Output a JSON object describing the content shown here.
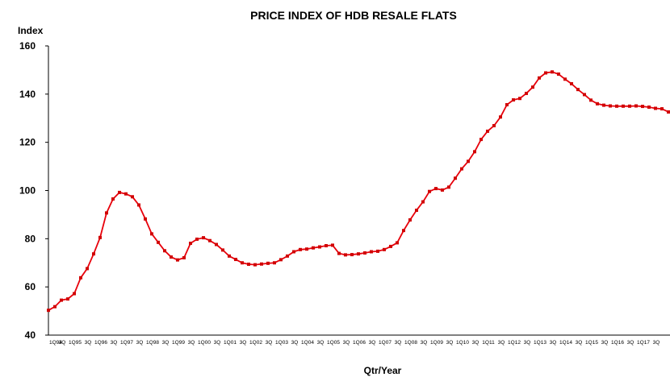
{
  "chart_data": {
    "type": "line",
    "title": "PRICE INDEX OF HDB RESALE FLATS",
    "xlabel": "Qtr/Year",
    "ylabel": "Index",
    "ylim": [
      40,
      160
    ],
    "yticks": [
      40,
      60,
      80,
      100,
      120,
      140,
      160
    ],
    "grid": false,
    "legend": "none",
    "colors": {
      "line": "#e8000b",
      "marker": "#d10000",
      "axis": "#000000"
    },
    "x_tick_labels": [
      "1Q94",
      "3Q",
      "1Q95",
      "3Q",
      "1Q96",
      "3Q",
      "1Q97",
      "3Q",
      "1Q98",
      "3Q",
      "1Q99",
      "3Q",
      "1Q00",
      "3Q",
      "1Q01",
      "3Q",
      "1Q02",
      "3Q",
      "1Q03",
      "3Q",
      "1Q04",
      "3Q",
      "1Q05",
      "3Q",
      "1Q06",
      "3Q",
      "1Q07",
      "3Q",
      "1Q08",
      "3Q",
      "1Q09",
      "3Q",
      "1Q10",
      "3Q",
      "1Q11",
      "3Q",
      "1Q12",
      "3Q",
      "1Q13",
      "3Q",
      "1Q14",
      "3Q",
      "1Q15",
      "3Q",
      "1Q16",
      "3Q",
      "1Q17",
      "3Q"
    ],
    "series": [
      {
        "values": [
          50.3,
          51.8,
          54.5,
          55,
          57.2,
          63.8,
          67.6,
          73.7,
          80.5,
          90.7,
          96.5,
          99.2,
          98.6,
          97.4,
          94,
          88.2,
          82,
          78.5,
          75,
          72.4,
          71.2,
          72.1,
          78.1,
          79.8,
          80.4,
          79.2,
          77.6,
          75.3,
          72.8,
          71.4,
          70,
          69.4,
          69.2,
          69.5,
          69.8,
          70,
          71.3,
          72.8,
          74.6,
          75.5,
          75.7,
          76.2,
          76.6,
          77.1,
          77.3,
          73.9,
          73.3,
          73.4,
          73.7,
          74.1,
          74.6,
          74.8,
          75.5,
          76.8,
          78.3,
          83.4,
          87.8,
          91.8,
          95.3,
          99.6,
          100.8,
          100.2,
          101.4,
          105.1,
          109,
          112.1,
          116.1,
          121.2,
          124.6,
          126.9,
          130.5,
          135.6,
          137.6,
          138.2,
          140.3,
          142.9,
          146.7,
          148.8,
          149.2,
          148.3,
          146.2,
          144.3,
          141.9,
          139.8,
          137.5,
          136,
          135.4,
          135.1,
          135,
          135,
          135,
          135.1,
          134.9,
          134.6,
          134.1,
          133.9,
          132.6
        ]
      }
    ]
  }
}
